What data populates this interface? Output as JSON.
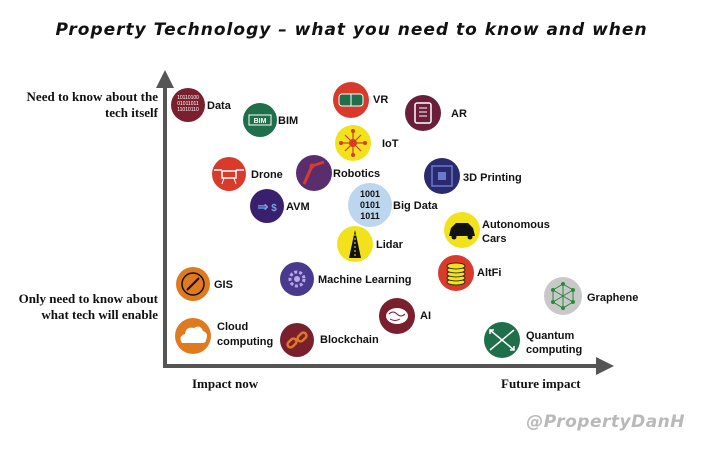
{
  "title": "Property Technology – what you need to know and when",
  "y_axis": {
    "top_label": "Need to know about the tech itself",
    "bottom_label": "Only need to know about what tech will enable"
  },
  "x_axis": {
    "left_label": "Impact now",
    "right_label": "Future impact"
  },
  "credit": "@PropertyDanH",
  "colors": {
    "axis": "#555555",
    "red": "#d83a2c",
    "maroon": "#7a1f2e",
    "green": "#1e6f4a",
    "navy": "#2a2a6e",
    "purple": "#5a2d6e",
    "orange": "#e07a1f",
    "yellow": "#f2e21c",
    "light_blue": "#bcd6ee"
  },
  "techs": [
    {
      "id": "data",
      "label": "Data",
      "icon": "binary-icon",
      "color": "#7a1f2e"
    },
    {
      "id": "bim",
      "label": "BIM",
      "icon": "bim-icon",
      "color": "#1e6f4a"
    },
    {
      "id": "vr",
      "label": "VR",
      "icon": "vr-headset-icon",
      "color": "#d83a2c"
    },
    {
      "id": "ar",
      "label": "AR",
      "icon": "ar-device-icon",
      "color": "#6b1e3a"
    },
    {
      "id": "iot",
      "label": "IoT",
      "icon": "network-icon",
      "color": "#f2e21c"
    },
    {
      "id": "drone",
      "label": "Drone",
      "icon": "drone-icon",
      "color": "#d83a2c"
    },
    {
      "id": "robotics",
      "label": "Robotics",
      "icon": "robot-arm-icon",
      "color": "#5a2d6e"
    },
    {
      "id": "3d_printing",
      "label": "3D Printing",
      "icon": "printer-icon",
      "color": "#2a2a6e"
    },
    {
      "id": "avm",
      "label": "AVM",
      "icon": "valuation-icon",
      "color": "#3a1f6e"
    },
    {
      "id": "big_data",
      "label": "Big Data",
      "icon": "big-data-icon",
      "color": "#bcd6ee"
    },
    {
      "id": "autonomous_cars",
      "label": "Autonomous Cars",
      "icon": "car-icon",
      "color": "#f2e21c"
    },
    {
      "id": "lidar",
      "label": "Lidar",
      "icon": "lidar-icon",
      "color": "#f2e21c"
    },
    {
      "id": "gis",
      "label": "GIS",
      "icon": "compass-icon",
      "color": "#e07a1f"
    },
    {
      "id": "machine_learning",
      "label": "Machine Learning",
      "icon": "gear-icon",
      "color": "#4a3a8e"
    },
    {
      "id": "altfi",
      "label": "AltFi",
      "icon": "coins-icon",
      "color": "#d83a2c"
    },
    {
      "id": "graphene",
      "label": "Graphene",
      "icon": "lattice-icon",
      "color": "#c8c8c8"
    },
    {
      "id": "cloud_computing",
      "label": "Cloud computing",
      "icon": "cloud-icon",
      "color": "#e07a1f"
    },
    {
      "id": "blockchain",
      "label": "Blockchain",
      "icon": "chain-icon",
      "color": "#7a1f2e"
    },
    {
      "id": "ai",
      "label": "AI",
      "icon": "brain-icon",
      "color": "#7a1f2e"
    },
    {
      "id": "quantum_computing",
      "label": "Quantum computing",
      "icon": "quantum-icon",
      "color": "#1e6f4a"
    }
  ]
}
